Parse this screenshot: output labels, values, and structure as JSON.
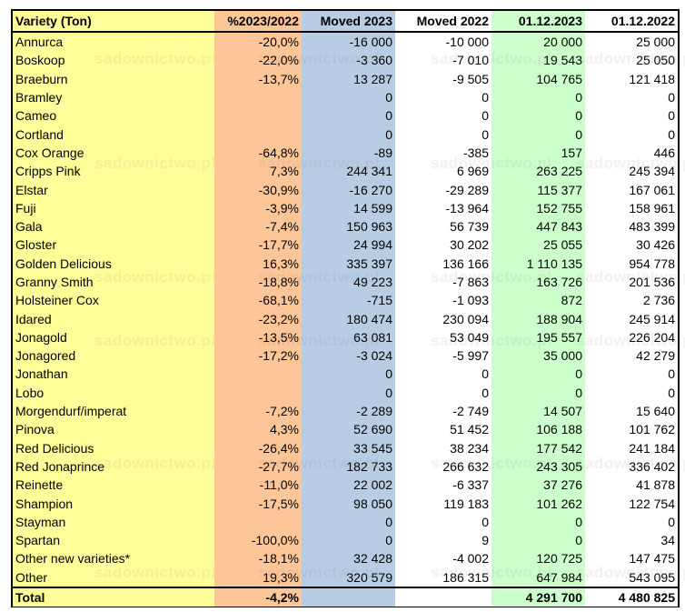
{
  "table": {
    "headers": [
      "Variety (Ton)",
      "%2023/2022",
      "Moved 2023",
      "Moved 2022",
      "01.12.2023",
      "01.12.2022"
    ],
    "rows": [
      [
        "Annurca",
        "-20,0%",
        "-16 000",
        "-10 000",
        "20 000",
        "25 000"
      ],
      [
        "Boskoop",
        "-22,0%",
        "-3 360",
        "-7 010",
        "19 543",
        "25 050"
      ],
      [
        "Braeburn",
        "-13,7%",
        "13 287",
        "-9 505",
        "104 765",
        "121 418"
      ],
      [
        "Bramley",
        "",
        "0",
        "0",
        "0",
        "0"
      ],
      [
        "Cameo",
        "",
        "0",
        "0",
        "0",
        "0"
      ],
      [
        "Cortland",
        "",
        "0",
        "0",
        "0",
        "0"
      ],
      [
        "Cox Orange",
        "-64,8%",
        "-89",
        "-385",
        "157",
        "446"
      ],
      [
        "Cripps Pink",
        "7,3%",
        "244 341",
        "6 969",
        "263 225",
        "245 394"
      ],
      [
        "Elstar",
        "-30,9%",
        "-16 270",
        "-29 289",
        "115 377",
        "167 061"
      ],
      [
        "Fuji",
        "-3,9%",
        "14 599",
        "-13 964",
        "152 755",
        "158 961"
      ],
      [
        "Gala",
        "-7,4%",
        "150 963",
        "56 739",
        "447 843",
        "483 399"
      ],
      [
        "Gloster",
        "-17,7%",
        "24 994",
        "30 202",
        "25 055",
        "30 426"
      ],
      [
        "Golden Delicious",
        "16,3%",
        "335 397",
        "136 166",
        "1 110 135",
        "954 778"
      ],
      [
        "Granny Smith",
        "-18,8%",
        "49 223",
        "-7 863",
        "163 726",
        "201 536"
      ],
      [
        "Holsteiner Cox",
        "-68,1%",
        "-715",
        "-1 093",
        "872",
        "2 736"
      ],
      [
        "Idared",
        "-23,2%",
        "180 474",
        "230 094",
        "188 904",
        "245 914"
      ],
      [
        "Jonagold",
        "-13,5%",
        "63 081",
        "53 049",
        "195 557",
        "226 204"
      ],
      [
        "Jonagored",
        "-17,2%",
        "-3 024",
        "-5 997",
        "35 000",
        "42 279"
      ],
      [
        "Jonathan",
        "",
        "0",
        "0",
        "0",
        "0"
      ],
      [
        "Lobo",
        "",
        "0",
        "0",
        "0",
        "0"
      ],
      [
        "Morgendurf/imperat",
        "-7,2%",
        "-2 289",
        "-2 749",
        "14 507",
        "15 640"
      ],
      [
        "Pinova",
        "4,3%",
        "52 690",
        "51 452",
        "106 188",
        "101 762"
      ],
      [
        "Red Delicious",
        "-26,4%",
        "33 545",
        "38 234",
        "177 542",
        "241 184"
      ],
      [
        "Red Jonaprince",
        "-27,7%",
        "182 733",
        "266 632",
        "243 305",
        "336 402"
      ],
      [
        "Reinette",
        "-11,0%",
        "22 002",
        "-6 337",
        "37 276",
        "41 878"
      ],
      [
        "Shampion",
        "-17,5%",
        "98 050",
        "119 183",
        "101 262",
        "122 754"
      ],
      [
        "Stayman",
        "",
        "0",
        "0",
        "0",
        "0"
      ],
      [
        "Spartan",
        "-100,0%",
        "0",
        "9",
        "0",
        "34"
      ],
      [
        "Other new varieties*",
        "-18,1%",
        "32 428",
        "-4 002",
        "120 725",
        "147 475"
      ],
      [
        "Other",
        "19,3%",
        "320 579",
        "186 315",
        "647 984",
        "543 095"
      ]
    ],
    "total": [
      "Total",
      "-4,2%",
      "",
      "",
      "4 291 700",
      "4 480 825"
    ]
  },
  "watermark": "sadownictwo.pl",
  "colors": {
    "variety_col": "#ffff99",
    "percent_col": "#fcc698",
    "moved2023_col": "#b8cce4",
    "moved2022_col": "#ffffff",
    "dec2023_col": "#ccffcc",
    "dec2022_col": "#ffffff"
  }
}
